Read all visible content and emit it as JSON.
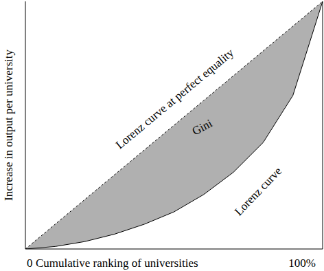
{
  "chart_data": {
    "type": "area",
    "x_label": "Cumulative ranking of universities",
    "y_label": "Increase in output per university",
    "annotations": [
      "Gini"
    ],
    "color": "#b0b0b0",
    "x": [
      0,
      10,
      20,
      30,
      40,
      50,
      60,
      70,
      80,
      90,
      100
    ],
    "series": [
      {
        "name": "Lorenz curve at perfect equality",
        "color": "#000000",
        "line_style": "dashed",
        "values": [
          0,
          10,
          20,
          30,
          40,
          50,
          60,
          70,
          80,
          90,
          100
        ]
      },
      {
        "name": "Lorenz curve",
        "color": "#000000",
        "line_style": "solid",
        "values": [
          0,
          1,
          3,
          6,
          10,
          15,
          22,
          31,
          43,
          62,
          100
        ]
      }
    ],
    "xlim": [
      0,
      100
    ],
    "ylim": [
      0,
      100
    ],
    "xticks": [
      0,
      {
        "value": 100,
        "label": "100%"
      }
    ],
    "tick_labels": "x",
    "grid": false
  }
}
